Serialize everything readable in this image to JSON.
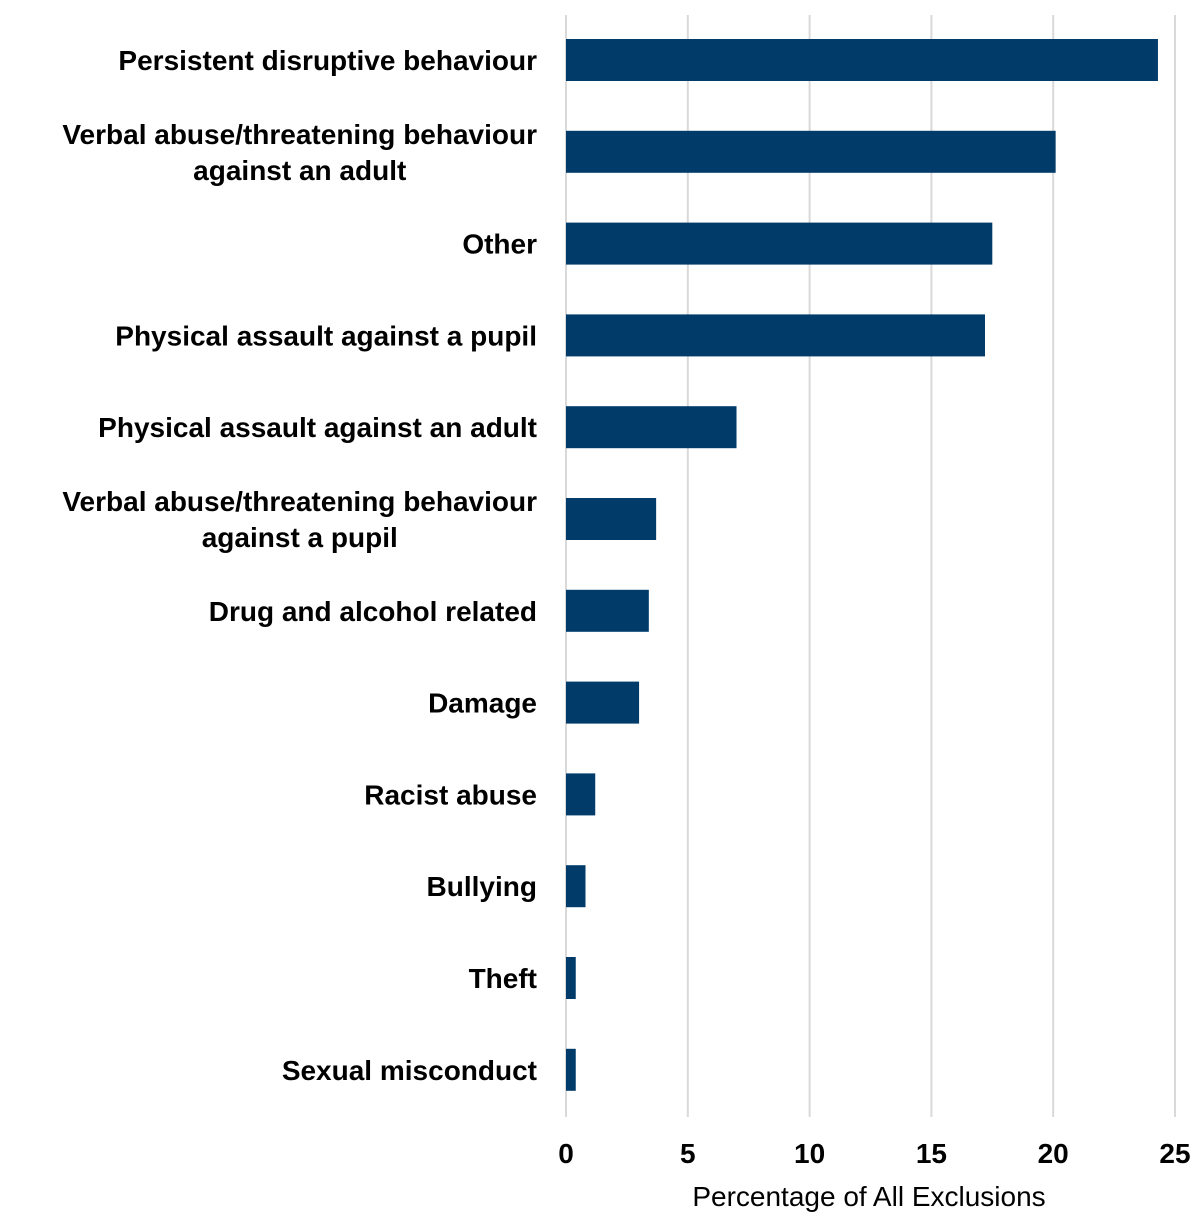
{
  "chart_data": {
    "type": "bar",
    "orientation": "horizontal",
    "categories": [
      [
        "Persistent disruptive behaviour"
      ],
      [
        "Verbal abuse/threatening behaviour",
        "against an adult"
      ],
      [
        "Other"
      ],
      [
        "Physical assault against a pupil"
      ],
      [
        "Physical assault against an adult"
      ],
      [
        "Verbal abuse/threatening behaviour",
        "against a pupil"
      ],
      [
        "Drug and alcohol related"
      ],
      [
        "Damage"
      ],
      [
        "Racist abuse"
      ],
      [
        "Bullying"
      ],
      [
        "Theft"
      ],
      [
        "Sexual misconduct"
      ]
    ],
    "values": [
      24.3,
      20.1,
      17.5,
      17.2,
      7.0,
      3.7,
      3.4,
      3.0,
      1.2,
      0.8,
      0.4,
      0.4
    ],
    "title": "",
    "xlabel": "Percentage of All Exclusions",
    "ylabel": "",
    "xlim": [
      0,
      25
    ],
    "xticks": [
      "0",
      "5",
      "10",
      "15",
      "20",
      "25"
    ],
    "grid": "vertical",
    "legend": "none",
    "colors": {
      "bar": "#003B6A",
      "grid": "#D9D9D9",
      "text": "#000000"
    }
  }
}
